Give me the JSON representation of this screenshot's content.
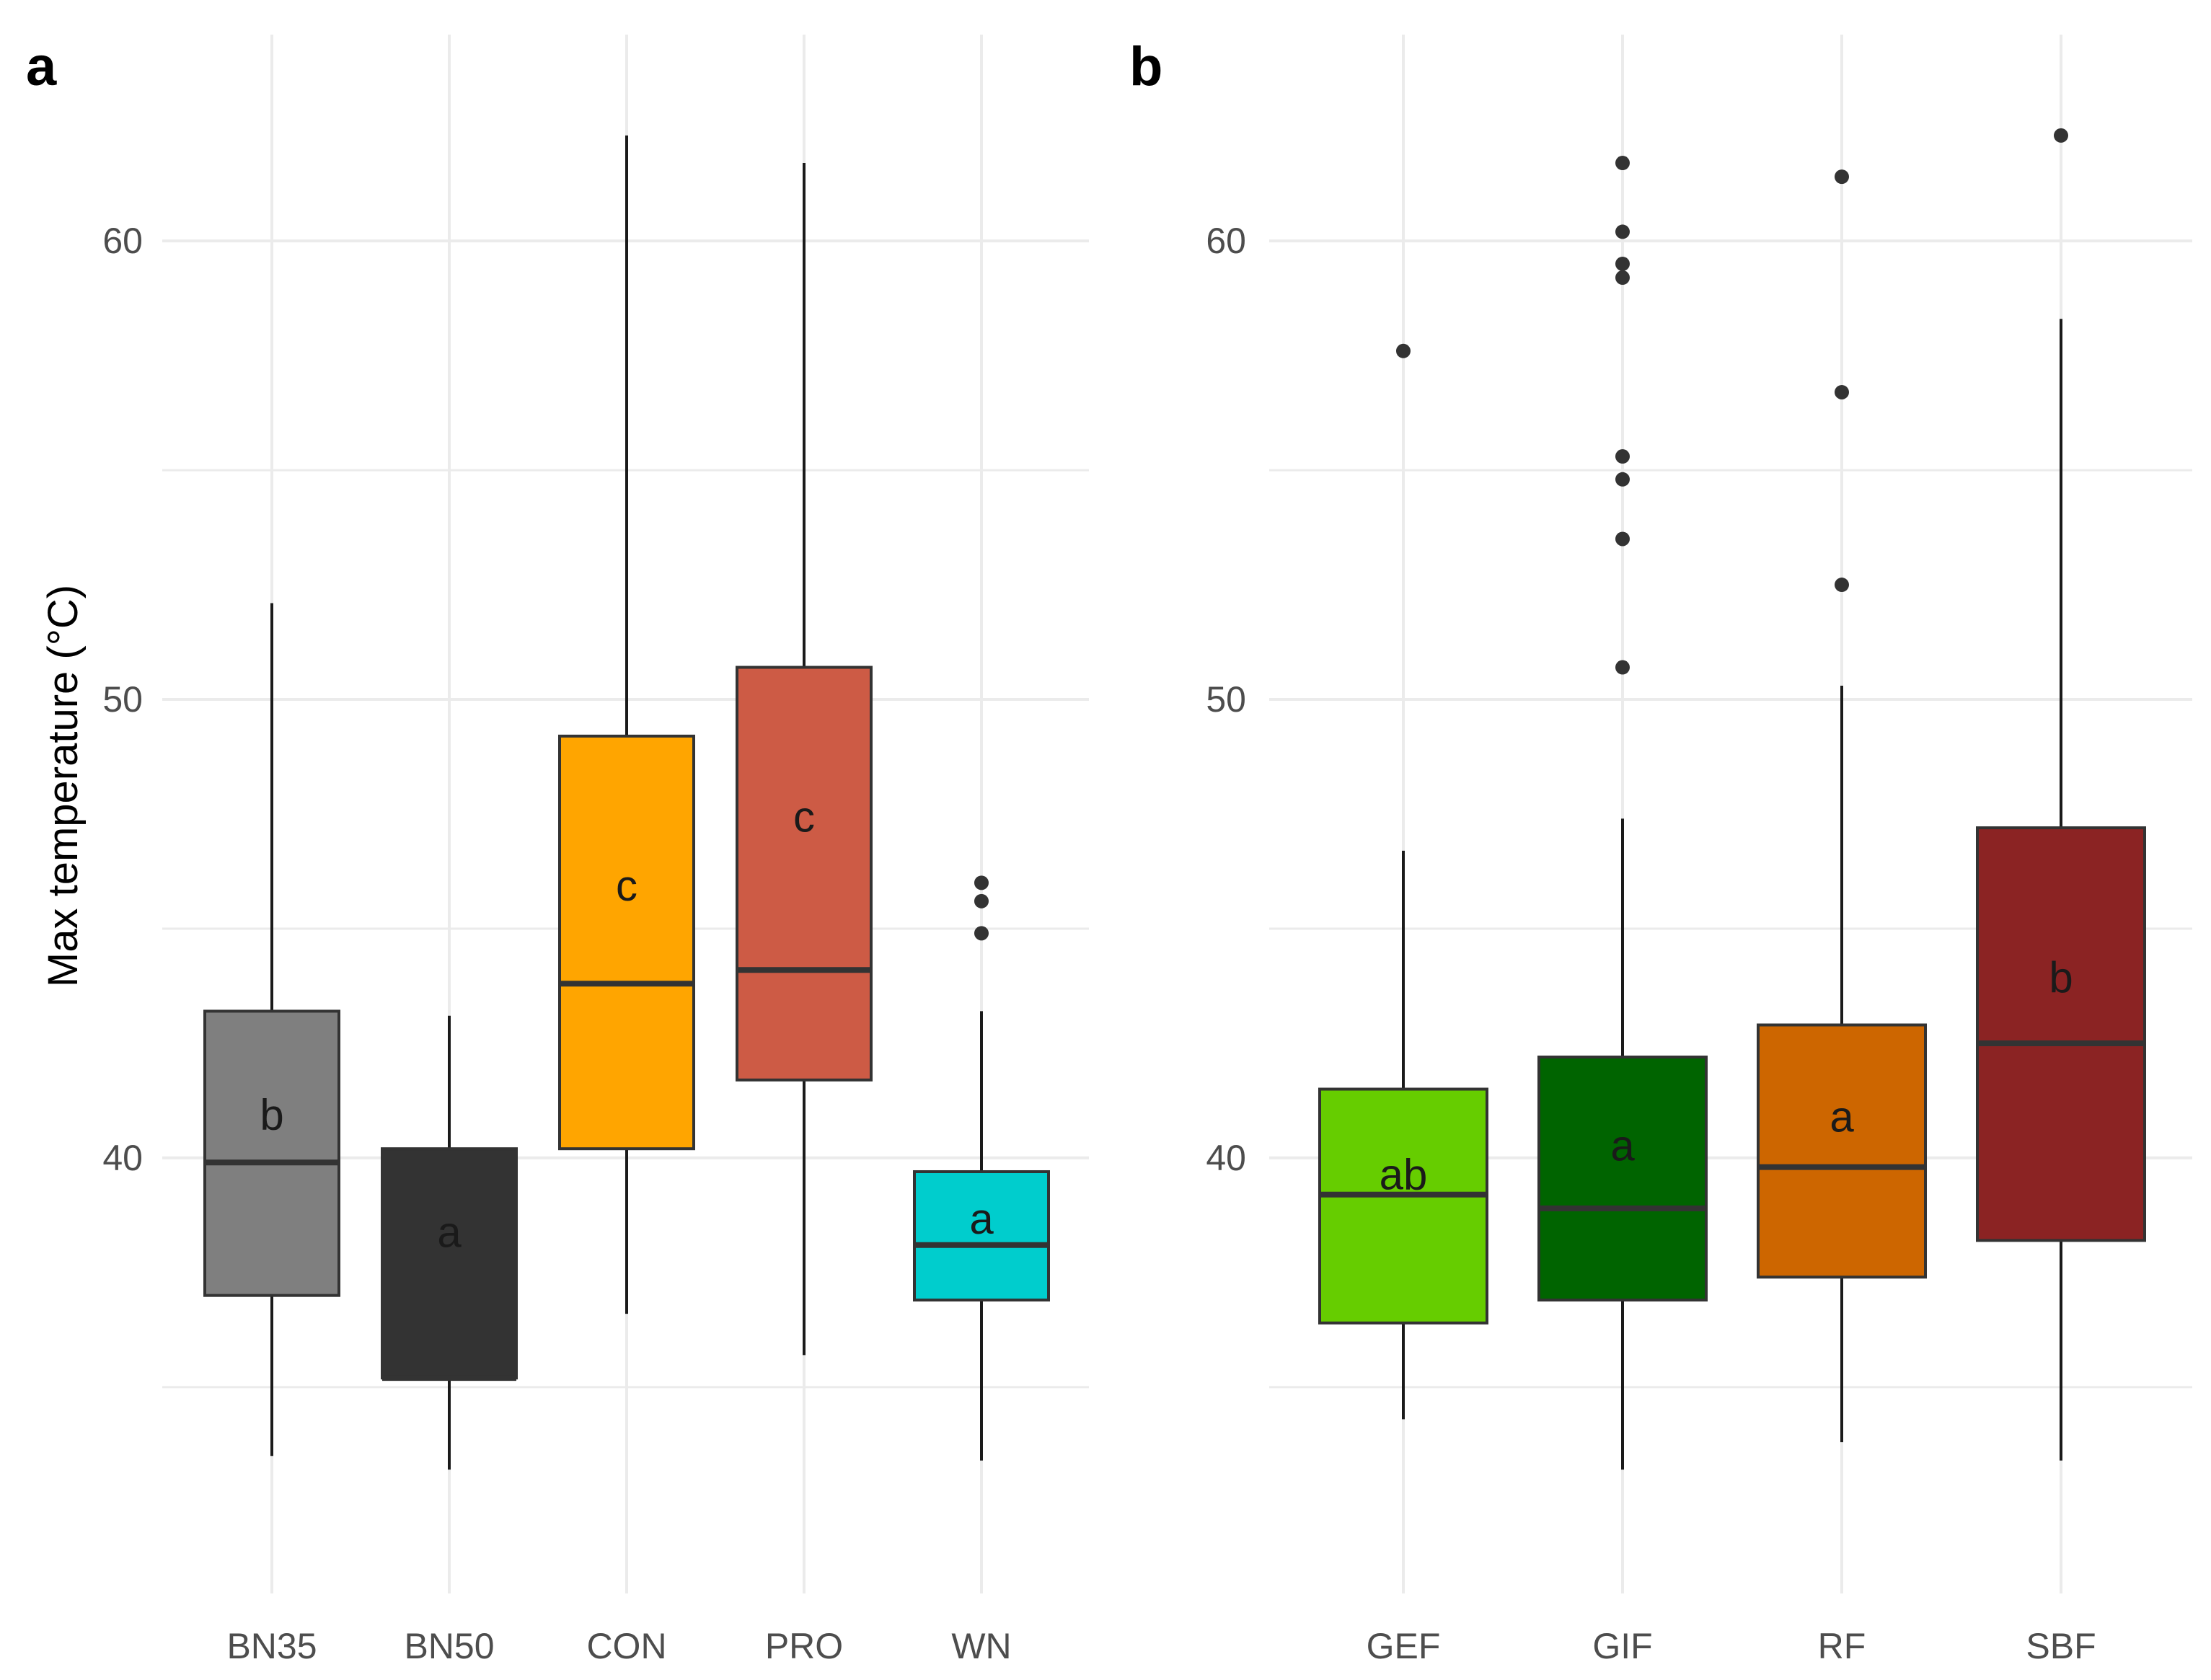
{
  "chart_data": [
    {
      "type": "boxplot",
      "panel": "a",
      "title": "",
      "xlabel": "",
      "ylabel": "Max temperature (°C)",
      "ylim": [
        30.5,
        64.5
      ],
      "yticks": [
        40,
        50,
        60
      ],
      "grid": true,
      "legend": "none",
      "categories": [
        "BN35",
        "BN50",
        "CON",
        "PRO",
        "WN"
      ],
      "boxes": [
        {
          "category": "BN35",
          "color": "#7f7f7f",
          "whisker_low": 33.5,
          "q1": 37.0,
          "median": 39.9,
          "q3": 43.2,
          "whisker_high": 52.1,
          "outliers": [],
          "letter": "b"
        },
        {
          "category": "BN50",
          "color": "#333333",
          "whisker_low": 33.2,
          "q1": 35.2,
          "median": 35.2,
          "q3": 40.2,
          "whisker_high": 43.1,
          "outliers": [],
          "letter": "a"
        },
        {
          "category": "CON",
          "color": "#ffa500",
          "whisker_low": 36.6,
          "q1": 40.2,
          "median": 43.8,
          "q3": 49.2,
          "whisker_high": 62.3,
          "outliers": [],
          "letter": "c"
        },
        {
          "category": "PRO",
          "color": "#cd5b45",
          "whisker_low": 35.7,
          "q1": 41.7,
          "median": 44.1,
          "q3": 50.7,
          "whisker_high": 61.7,
          "outliers": [],
          "letter": "c"
        },
        {
          "category": "WN",
          "color": "#00cdcd",
          "whisker_low": 33.4,
          "q1": 36.9,
          "median": 38.1,
          "q3": 39.7,
          "whisker_high": 43.2,
          "outliers": [
            44.9,
            45.6,
            46.0
          ],
          "letter": "a"
        }
      ]
    },
    {
      "type": "boxplot",
      "panel": "b",
      "title": "",
      "xlabel": "",
      "ylabel": "",
      "ylim": [
        30.5,
        64.5
      ],
      "yticks": [
        40,
        50,
        60
      ],
      "grid": true,
      "legend": "none",
      "categories": [
        "GEF",
        "GIF",
        "RF",
        "SBF"
      ],
      "boxes": [
        {
          "category": "GEF",
          "color": "#66cd00",
          "whisker_low": 34.3,
          "q1": 36.4,
          "median": 39.2,
          "q3": 41.5,
          "whisker_high": 46.7,
          "outliers": [
            57.6
          ],
          "letter": "ab"
        },
        {
          "category": "GIF",
          "color": "#006400",
          "whisker_low": 33.2,
          "q1": 36.9,
          "median": 38.9,
          "q3": 42.2,
          "whisker_high": 47.4,
          "outliers": [
            50.7,
            53.5,
            54.8,
            55.3,
            59.2,
            59.5,
            60.2,
            61.7
          ],
          "letter": "a"
        },
        {
          "category": "RF",
          "color": "#cd6600",
          "whisker_low": 33.8,
          "q1": 37.4,
          "median": 39.8,
          "q3": 42.9,
          "whisker_high": 50.3,
          "outliers": [
            52.5,
            56.7,
            61.4
          ],
          "letter": "a"
        },
        {
          "category": "SBF",
          "color": "#8b2323",
          "whisker_low": 33.4,
          "q1": 38.2,
          "median": 42.5,
          "q3": 47.2,
          "whisker_high": 58.3,
          "outliers": [
            62.3
          ],
          "letter": "b"
        }
      ]
    }
  ]
}
